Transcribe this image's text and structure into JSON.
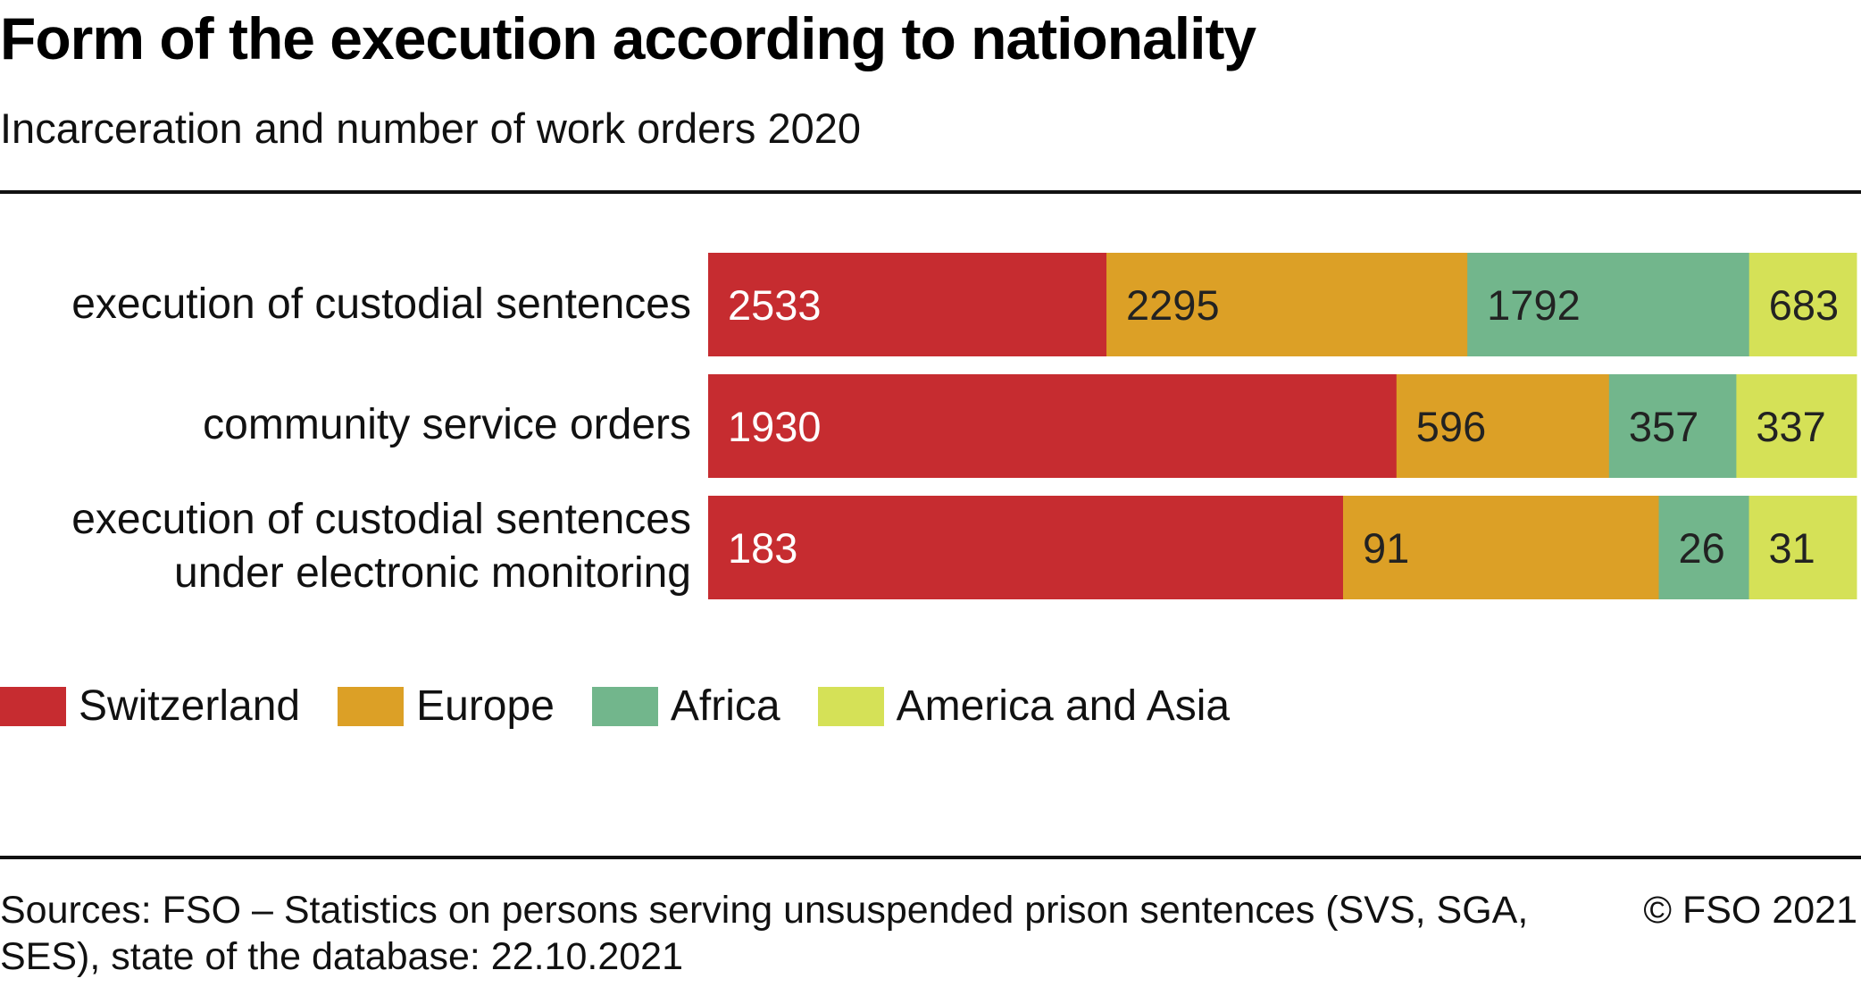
{
  "chart_data": {
    "type": "bar",
    "orientation": "horizontal",
    "stacking": "percent",
    "title": "Form of the execution according to nationality",
    "subtitle": "Incarceration and number of work orders 2020",
    "categories": [
      [
        "execution of custodial sentences"
      ],
      [
        "community service orders"
      ],
      [
        "execution of custodial sentences",
        "under electronic monitoring"
      ]
    ],
    "series": [
      {
        "name": "Switzerland",
        "color": "#c62c30",
        "label_color": "#ffffff",
        "values": [
          2533,
          1930,
          183
        ]
      },
      {
        "name": "Europe",
        "color": "#dca026",
        "label_color": "#222222",
        "values": [
          2295,
          596,
          91
        ]
      },
      {
        "name": "Africa",
        "color": "#72b68c",
        "label_color": "#222222",
        "values": [
          1792,
          357,
          26
        ]
      },
      {
        "name": "America and Asia",
        "color": "#d5e157",
        "label_color": "#222222",
        "values": [
          683,
          337,
          31
        ]
      }
    ],
    "xlabel": "",
    "ylabel": "",
    "grid": false,
    "legend_position": "bottom-left",
    "source": "Sources: FSO – Statistics on persons serving unsuspended prison sentences (SVS, SGA, SES), state of the database: 22.10.2021",
    "copyright": "© FSO 2021"
  }
}
